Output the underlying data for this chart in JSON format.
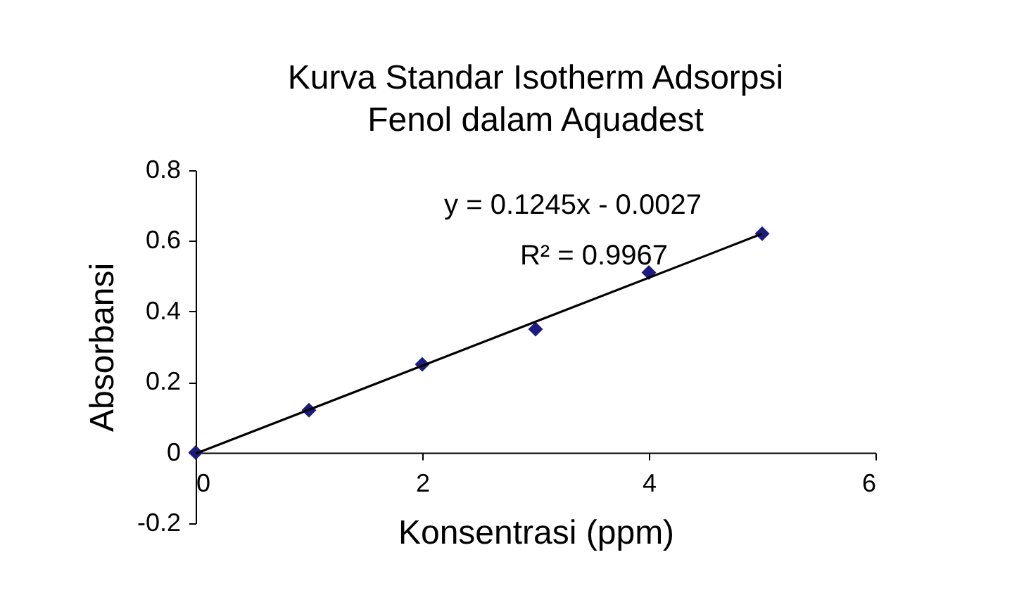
{
  "chart_data": {
    "type": "scatter",
    "title": "Kurva Standar Isotherm Adsorpsi\nFenol dalam Aquadest",
    "xlabel": "Konsentrasi (ppm)",
    "ylabel": "Absorbansi",
    "x": [
      0,
      1,
      2,
      3,
      4,
      5
    ],
    "series": [
      {
        "color": "#1c1c80",
        "values": [
          0,
          0.12,
          0.25,
          0.35,
          0.51,
          0.62
        ],
        "marker": "diamond"
      },
      {
        "type": "line",
        "color": "#000000",
        "x": [
          0,
          5
        ],
        "values": [
          -0.003,
          0.62
        ],
        "marker": "none"
      }
    ],
    "xlim": [
      0,
      6
    ],
    "xticks": [
      0,
      2,
      4,
      6
    ],
    "ylim": [
      -0.2,
      0.8
    ],
    "yticks": [
      -0.2,
      0,
      0.2,
      0.4,
      0.6,
      0.8
    ],
    "annotations": [
      "y = 0.1245x - 0.0027",
      "R² = 0.9967"
    ],
    "grid": false
  }
}
